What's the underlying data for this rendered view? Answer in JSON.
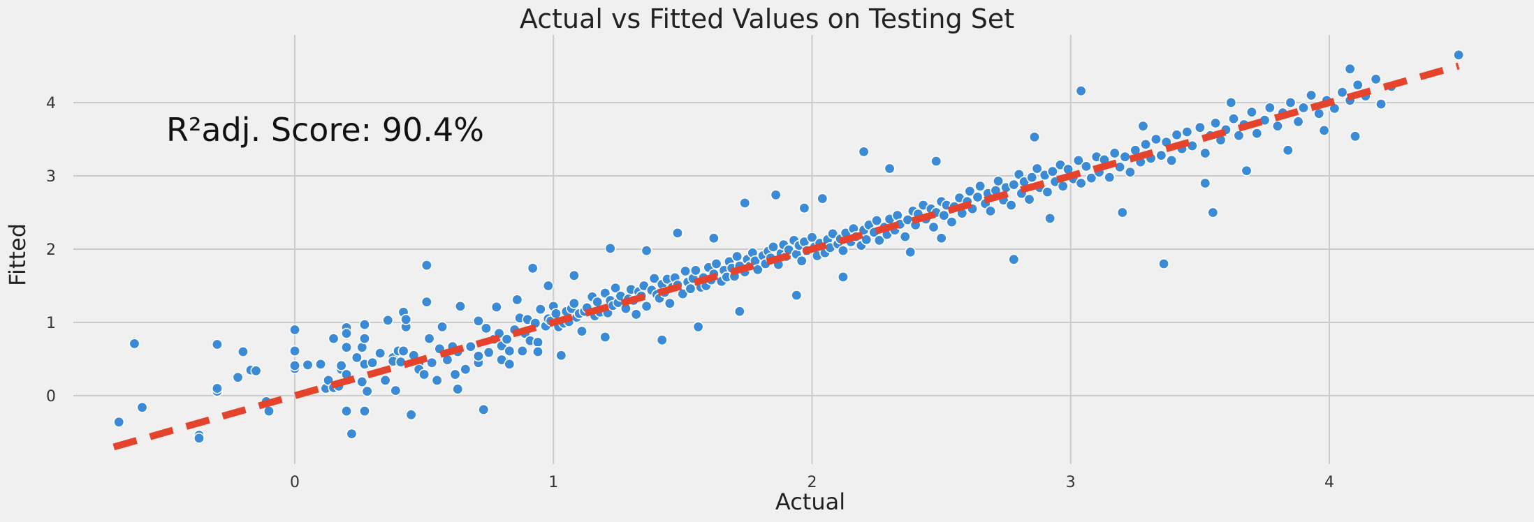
{
  "chart_data": {
    "type": "scatter",
    "title": "Actual vs Fitted Values on Testing Set",
    "xlabel": "Actual",
    "ylabel": "Fitted",
    "annotation": "R²adj. Score: 90.4%",
    "xlim": [
      -0.72,
      4.72
    ],
    "ylim": [
      -0.92,
      4.88
    ],
    "xticks": [
      0,
      1,
      2,
      3,
      4
    ],
    "yticks": [
      0,
      1,
      2,
      3,
      4
    ],
    "grid": true,
    "colors": {
      "points": "#3b8ad6",
      "point_edge": "#ffffff",
      "fit_line": "#e5432b",
      "grid": "#cbcbcb",
      "background": "#f0f0f0"
    },
    "reference_line": {
      "x": [
        -0.7,
        4.5
      ],
      "y": [
        -0.7,
        4.5
      ],
      "style": "dashed"
    },
    "points": [
      [
        -0.68,
        -0.36
      ],
      [
        -0.62,
        0.71
      ],
      [
        -0.59,
        -0.16
      ],
      [
        -0.37,
        -0.54
      ],
      [
        -0.37,
        -0.58
      ],
      [
        -0.3,
        0.06
      ],
      [
        -0.3,
        0.1
      ],
      [
        -0.3,
        0.7
      ],
      [
        -0.22,
        0.25
      ],
      [
        -0.2,
        0.6
      ],
      [
        -0.17,
        0.35
      ],
      [
        -0.15,
        0.34
      ],
      [
        -0.11,
        -0.08
      ],
      [
        -0.1,
        -0.21
      ],
      [
        0,
        0.37
      ],
      [
        0,
        0.41
      ],
      [
        0,
        0.61
      ],
      [
        0,
        0.9
      ],
      [
        0.05,
        0.42
      ],
      [
        0.1,
        0.43
      ],
      [
        0.12,
        0.1
      ],
      [
        0.13,
        0.21
      ],
      [
        0.15,
        0.11
      ],
      [
        0.15,
        0.78
      ],
      [
        0.17,
        0.13
      ],
      [
        0.18,
        0.36
      ],
      [
        0.18,
        0.41
      ],
      [
        0.2,
        0.93
      ],
      [
        0.2,
        -0.21
      ],
      [
        0.2,
        0.29
      ],
      [
        0.2,
        0.66
      ],
      [
        0.2,
        0.85
      ],
      [
        0.22,
        -0.52
      ],
      [
        0.24,
        0.52
      ],
      [
        0.26,
        0.66
      ],
      [
        0.26,
        0.19
      ],
      [
        0.27,
        0.43
      ],
      [
        0.27,
        0.78
      ],
      [
        0.27,
        0.97
      ],
      [
        0.27,
        -0.21
      ],
      [
        0.28,
        0.06
      ],
      [
        0.3,
        0.45
      ],
      [
        0.33,
        0.58
      ],
      [
        0.35,
        0.21
      ],
      [
        0.36,
        1.03
      ],
      [
        0.38,
        0.52
      ],
      [
        0.38,
        0.47
      ],
      [
        0.39,
        0.07
      ],
      [
        0.4,
        0.61
      ],
      [
        0.41,
        0.46
      ],
      [
        0.42,
        0.61
      ],
      [
        0.42,
        1.14
      ],
      [
        0.43,
        0.94
      ],
      [
        0.43,
        1.04
      ],
      [
        0.45,
        -0.26
      ],
      [
        0.46,
        0.55
      ],
      [
        0.48,
        0.44
      ],
      [
        0.48,
        0.36
      ],
      [
        0.5,
        0.29
      ],
      [
        0.51,
        1.28
      ],
      [
        0.51,
        1.78
      ],
      [
        0.52,
        0.78
      ],
      [
        0.53,
        0.45
      ],
      [
        0.55,
        0.21
      ],
      [
        0.56,
        0.64
      ],
      [
        0.57,
        0.94
      ],
      [
        0.59,
        0.49
      ],
      [
        0.61,
        0.67
      ],
      [
        0.62,
        0.29
      ],
      [
        0.63,
        0.09
      ],
      [
        0.63,
        0.6
      ],
      [
        0.64,
        1.22
      ],
      [
        0.66,
        0.36
      ],
      [
        0.68,
        0.67
      ],
      [
        0.71,
        1.02
      ],
      [
        0.71,
        0.45
      ],
      [
        0.71,
        0.54
      ],
      [
        0.73,
        -0.19
      ],
      [
        0.74,
        0.92
      ],
      [
        0.75,
        0.59
      ],
      [
        0.77,
        0.77
      ],
      [
        0.78,
        1.21
      ],
      [
        0.79,
        0.85
      ],
      [
        0.8,
        0.68
      ],
      [
        0.8,
        0.49
      ],
      [
        0.82,
        0.77
      ],
      [
        0.83,
        0.61
      ],
      [
        0.85,
        0.9
      ],
      [
        0.86,
        1.31
      ],
      [
        0.87,
        1.06
      ],
      [
        0.88,
        0.61
      ],
      [
        0.89,
        0.85
      ],
      [
        0.9,
        1.04
      ],
      [
        0.91,
        0.75
      ],
      [
        0.93,
        0.99
      ],
      [
        0.94,
        0.73
      ],
      [
        0.95,
        1.18
      ],
      [
        0.97,
        0.95
      ],
      [
        0.98,
        1.05
      ],
      [
        0.99,
        1.02
      ],
      [
        1,
        1.22
      ],
      [
        1.01,
        1.12
      ],
      [
        1.02,
        0.94
      ],
      [
        1.04,
        0.99
      ],
      [
        1.05,
        1.15
      ],
      [
        1.06,
        1.01
      ],
      [
        1.07,
        1.19
      ],
      [
        1.08,
        1.26
      ],
      [
        1.09,
        1.07
      ],
      [
        1.1,
        1.12
      ],
      [
        1.11,
        0.88
      ],
      [
        1.12,
        1.15
      ],
      [
        1.13,
        1.2
      ],
      [
        1.15,
        1.35
      ],
      [
        1.16,
        1.09
      ],
      [
        1.17,
        1.28
      ],
      [
        1.18,
        1.14
      ],
      [
        1.2,
        1.4
      ],
      [
        1.21,
        1.13
      ],
      [
        1.22,
        1.3
      ],
      [
        1.23,
        1.23
      ],
      [
        1.24,
        1.47
      ],
      [
        1.25,
        1.27
      ],
      [
        1.26,
        1.36
      ],
      [
        1.28,
        1.19
      ],
      [
        1.29,
        1.32
      ],
      [
        1.3,
        1.45
      ],
      [
        1.31,
        1.3
      ],
      [
        1.32,
        1.11
      ],
      [
        1.33,
        1.42
      ],
      [
        1.34,
        1.36
      ],
      [
        1.35,
        1.5
      ],
      [
        1.36,
        1.22
      ],
      [
        1.38,
        1.44
      ],
      [
        1.39,
        1.6
      ],
      [
        1.4,
        1.38
      ],
      [
        1.41,
        1.33
      ],
      [
        1.42,
        1.52
      ],
      [
        1.43,
        1.41
      ],
      [
        1.44,
        1.59
      ],
      [
        1.45,
        1.26
      ],
      [
        1.46,
        1.48
      ],
      [
        1.47,
        1.61
      ],
      [
        1.48,
        1.51
      ],
      [
        1.5,
        1.39
      ],
      [
        1.51,
        1.7
      ],
      [
        1.52,
        1.55
      ],
      [
        1.53,
        1.46
      ],
      [
        1.54,
        1.6
      ],
      [
        1.55,
        1.71
      ],
      [
        1.57,
        1.48
      ],
      [
        1.58,
        1.61
      ],
      [
        1.59,
        1.5
      ],
      [
        1.6,
        1.75
      ],
      [
        1.61,
        1.58
      ],
      [
        1.62,
        1.66
      ],
      [
        1.63,
        1.8
      ],
      [
        1.65,
        1.56
      ],
      [
        1.66,
        1.71
      ],
      [
        1.67,
        1.62
      ],
      [
        1.68,
        1.83
      ],
      [
        1.69,
        1.74
      ],
      [
        1.7,
        1.63
      ],
      [
        1.71,
        1.9
      ],
      [
        1.72,
        1.77
      ],
      [
        1.74,
        1.69
      ],
      [
        1.75,
        1.86
      ],
      [
        1.76,
        1.77
      ],
      [
        1.77,
        1.95
      ],
      [
        1.78,
        1.84
      ],
      [
        1.79,
        1.72
      ],
      [
        1.81,
        1.91
      ],
      [
        1.82,
        1.8
      ],
      [
        1.83,
        1.97
      ],
      [
        1.84,
        1.88
      ],
      [
        1.85,
        2.03
      ],
      [
        1.87,
        1.79
      ],
      [
        1.88,
        1.94
      ],
      [
        1.89,
        2.06
      ],
      [
        1.9,
        1.9
      ],
      [
        1.91,
        1.99
      ],
      [
        1.93,
        2.12
      ],
      [
        1.94,
        1.93
      ],
      [
        1.95,
        2.05
      ],
      [
        1.96,
        1.84
      ],
      [
        1.97,
        2.1
      ],
      [
        1.98,
        1.98
      ],
      [
        2,
        2.16
      ],
      [
        2.01,
        2.03
      ],
      [
        2.02,
        1.91
      ],
      [
        2.03,
        2.08
      ],
      [
        2.05,
        1.95
      ],
      [
        2.06,
        2.13
      ],
      [
        2.07,
        2.02
      ],
      [
        2.08,
        2.21
      ],
      [
        2.1,
        2.07
      ],
      [
        2.11,
        2.14
      ],
      [
        2.12,
        1.98
      ],
      [
        2.13,
        2.22
      ],
      [
        2.15,
        2.1
      ],
      [
        2.16,
        2.28
      ],
      [
        2.17,
        2.17
      ],
      [
        2.19,
        2.05
      ],
      [
        2.2,
        2.26
      ],
      [
        2.21,
        2.13
      ],
      [
        2.22,
        2.33
      ],
      [
        2.24,
        2.23
      ],
      [
        2.25,
        2.39
      ],
      [
        2.26,
        2.12
      ],
      [
        2.28,
        2.3
      ],
      [
        2.29,
        2.2
      ],
      [
        2.3,
        2.41
      ],
      [
        2.32,
        2.26
      ],
      [
        2.33,
        2.46
      ],
      [
        2.34,
        2.34
      ],
      [
        2.36,
        2.17
      ],
      [
        2.37,
        2.4
      ],
      [
        2.39,
        2.52
      ],
      [
        2.4,
        2.33
      ],
      [
        2.41,
        2.48
      ],
      [
        2.43,
        2.6
      ],
      [
        2.44,
        2.41
      ],
      [
        2.46,
        2.55
      ],
      [
        2.47,
        2.3
      ],
      [
        2.48,
        2.5
      ],
      [
        2.5,
        2.65
      ],
      [
        2.51,
        2.46
      ],
      [
        2.52,
        2.6
      ],
      [
        2.54,
        2.37
      ],
      [
        2.55,
        2.58
      ],
      [
        2.57,
        2.7
      ],
      [
        2.58,
        2.49
      ],
      [
        2.6,
        2.65
      ],
      [
        2.61,
        2.79
      ],
      [
        2.62,
        2.55
      ],
      [
        2.64,
        2.71
      ],
      [
        2.65,
        2.86
      ],
      [
        2.67,
        2.62
      ],
      [
        2.68,
        2.76
      ],
      [
        2.69,
        2.52
      ],
      [
        2.71,
        2.8
      ],
      [
        2.72,
        2.93
      ],
      [
        2.74,
        2.67
      ],
      [
        2.75,
        2.84
      ],
      [
        2.77,
        2.6
      ],
      [
        2.78,
        2.88
      ],
      [
        2.8,
        3.02
      ],
      [
        2.81,
        2.76
      ],
      [
        2.82,
        2.92
      ],
      [
        2.84,
        2.68
      ],
      [
        2.85,
        2.98
      ],
      [
        2.87,
        3.1
      ],
      [
        2.88,
        2.84
      ],
      [
        2.9,
        3.01
      ],
      [
        2.91,
        2.78
      ],
      [
        2.93,
        3.06
      ],
      [
        2.94,
        2.92
      ],
      [
        2.96,
        3.15
      ],
      [
        2.97,
        2.86
      ],
      [
        2.99,
        3.09
      ],
      [
        3.01,
        2.96
      ],
      [
        3.03,
        3.21
      ],
      [
        3.04,
        2.9
      ],
      [
        3.06,
        3.13
      ],
      [
        3.08,
        2.97
      ],
      [
        3.1,
        3.26
      ],
      [
        3.11,
        3.05
      ],
      [
        3.13,
        3.22
      ],
      [
        3.15,
        2.98
      ],
      [
        3.17,
        3.31
      ],
      [
        3.19,
        3.12
      ],
      [
        3.21,
        3.26
      ],
      [
        3.23,
        3.05
      ],
      [
        3.25,
        3.35
      ],
      [
        3.27,
        3.19
      ],
      [
        3.29,
        3.43
      ],
      [
        3.31,
        3.24
      ],
      [
        3.33,
        3.5
      ],
      [
        3.35,
        3.28
      ],
      [
        3.37,
        3.46
      ],
      [
        3.39,
        3.21
      ],
      [
        3.41,
        3.56
      ],
      [
        3.43,
        3.37
      ],
      [
        3.45,
        3.6
      ],
      [
        3.47,
        3.41
      ],
      [
        3.5,
        3.66
      ],
      [
        3.52,
        3.31
      ],
      [
        3.54,
        3.55
      ],
      [
        3.56,
        3.72
      ],
      [
        3.58,
        3.49
      ],
      [
        3.6,
        3.63
      ],
      [
        3.63,
        3.78
      ],
      [
        3.65,
        3.55
      ],
      [
        3.67,
        3.7
      ],
      [
        3.7,
        3.87
      ],
      [
        3.72,
        3.58
      ],
      [
        3.75,
        3.76
      ],
      [
        3.77,
        3.93
      ],
      [
        3.8,
        3.68
      ],
      [
        3.82,
        3.86
      ],
      [
        3.85,
        4.0
      ],
      [
        3.88,
        3.74
      ],
      [
        3.9,
        3.93
      ],
      [
        3.93,
        4.1
      ],
      [
        3.96,
        3.85
      ],
      [
        3.99,
        4.03
      ],
      [
        4.02,
        3.92
      ],
      [
        4.05,
        4.14
      ],
      [
        4.08,
        4.03
      ],
      [
        4.11,
        4.24
      ],
      [
        4.14,
        4.09
      ],
      [
        4.18,
        4.32
      ],
      [
        0.92,
        1.74
      ],
      [
        0.98,
        1.5
      ],
      [
        1.08,
        1.64
      ],
      [
        1.22,
        2.01
      ],
      [
        1.36,
        1.98
      ],
      [
        1.48,
        2.22
      ],
      [
        1.62,
        2.15
      ],
      [
        1.74,
        2.63
      ],
      [
        1.86,
        2.74
      ],
      [
        1.97,
        2.56
      ],
      [
        2.04,
        2.69
      ],
      [
        2.2,
        3.33
      ],
      [
        2.3,
        3.1
      ],
      [
        2.48,
        3.2
      ],
      [
        2.78,
        1.86
      ],
      [
        2.86,
        3.53
      ],
      [
        3.04,
        4.16
      ],
      [
        3.28,
        3.68
      ],
      [
        3.36,
        1.8
      ],
      [
        3.55,
        2.5
      ],
      [
        3.62,
        4.0
      ],
      [
        4.08,
        4.46
      ],
      [
        4.1,
        3.54
      ],
      [
        4.5,
        4.65
      ],
      [
        4.24,
        4.22
      ],
      [
        4.2,
        3.98
      ],
      [
        3.98,
        3.62
      ],
      [
        3.84,
        3.35
      ],
      [
        3.68,
        3.07
      ],
      [
        3.52,
        2.9
      ],
      [
        3.2,
        2.5
      ],
      [
        2.92,
        2.42
      ],
      [
        2.5,
        2.15
      ],
      [
        2.38,
        1.96
      ],
      [
        2.12,
        1.62
      ],
      [
        1.94,
        1.37
      ],
      [
        1.72,
        1.15
      ],
      [
        1.56,
        0.94
      ],
      [
        1.42,
        0.76
      ],
      [
        1.2,
        0.8
      ],
      [
        1.03,
        0.55
      ],
      [
        0.94,
        0.6
      ],
      [
        0.83,
        0.43
      ]
    ]
  }
}
